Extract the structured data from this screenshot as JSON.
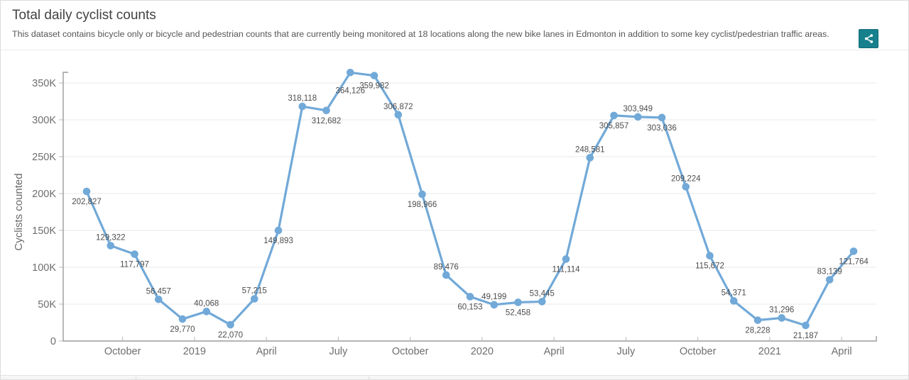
{
  "header": {
    "title": "Total daily cyclist counts",
    "description": "This dataset contains bicycle only or bicycle and pedestrian counts that are currently being monitored at 18 locations along the new bike lanes in Edmonton in addition to some key cyclist/pedestrian traffic areas.",
    "share_button_color": "#17808d"
  },
  "chart_data": {
    "type": "line",
    "title": "",
    "xlabel": "",
    "ylabel": "Cyclists counted",
    "legend": "none",
    "grid": "horizontal",
    "marker": "circle",
    "series_color": "#71a9d8",
    "ylim": [
      0,
      364126
    ],
    "y_ticks": [
      "0",
      "50K",
      "100K",
      "150K",
      "200K",
      "250K",
      "300K",
      "350K"
    ],
    "y_tick_values": [
      0,
      50000,
      100000,
      150000,
      200000,
      250000,
      300000,
      350000
    ],
    "x": [
      "Sep 2018",
      "Oct 2018",
      "Nov 2018",
      "Dec 2018",
      "Jan 2019",
      "Feb 2019",
      "Mar 2019",
      "Apr 2019",
      "May 2019",
      "Jun 2019",
      "Jul 2019",
      "Aug 2019",
      "Sep 2019",
      "Oct 2019",
      "Nov 2019",
      "Dec 2019",
      "Jan 2020",
      "Feb 2020",
      "Mar 2020",
      "Apr 2020",
      "May 2020",
      "Jun 2020",
      "Jul 2020",
      "Aug 2020",
      "Sep 2020",
      "Oct 2020",
      "Nov 2020",
      "Dec 2020",
      "Jan 2021",
      "Feb 2021",
      "Mar 2021",
      "Apr 2021",
      "May 2021"
    ],
    "values": [
      202827,
      129322,
      117797,
      56457,
      29770,
      40068,
      22070,
      57215,
      149893,
      318118,
      312682,
      364126,
      359982,
      306872,
      198966,
      89476,
      60153,
      49199,
      52458,
      53445,
      111114,
      248581,
      305857,
      303949,
      303036,
      209224,
      115672,
      54371,
      28228,
      31296,
      21187,
      83139,
      121764
    ],
    "x_tick_labels": [
      "October",
      "2019",
      "April",
      "July",
      "October",
      "2020",
      "April",
      "July",
      "October",
      "2021",
      "April"
    ],
    "x_tick_month_index": [
      1,
      4,
      7,
      10,
      13,
      16,
      19,
      22,
      25,
      28,
      31
    ],
    "label_overrides": {
      "11": "below-far"
    }
  }
}
